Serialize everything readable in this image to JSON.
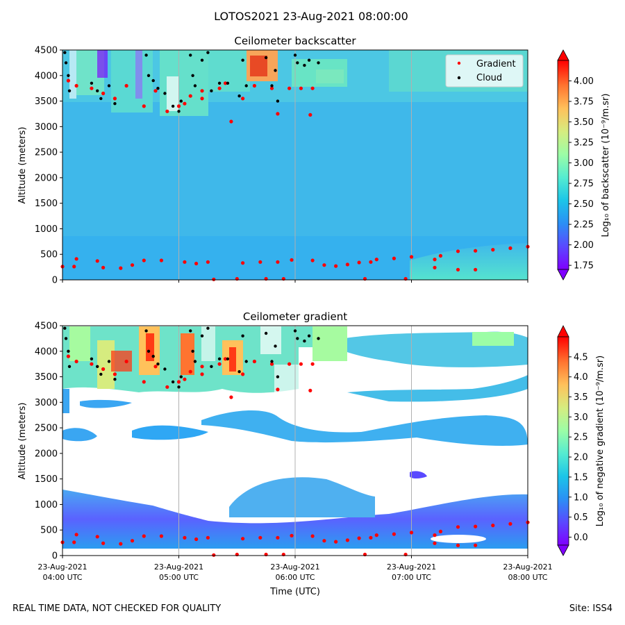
{
  "figure": {
    "suptitle": "LOTOS2021 23-Aug-2021 08:00:00",
    "footer_left": "REAL TIME DATA, NOT CHECKED FOR QUALITY",
    "footer_right": "Site: ISS4"
  },
  "colors": {
    "background_field": "#3fb8ea",
    "gradient_marker": "#ff0000",
    "cloud_marker": "#000000",
    "grid": "#b0b0b0",
    "colormap": [
      "#7f00ff",
      "#5a49ff",
      "#2b8ff5",
      "#1cc5e8",
      "#55ecd1",
      "#9cfda6",
      "#d6ec7f",
      "#ffc15b",
      "#ff7430",
      "#ff0000"
    ]
  },
  "chart_data": [
    {
      "type": "heatmap",
      "title": "Ceilometer backscatter",
      "xlabel": "Time (UTC)",
      "ylabel": "Altitude (meters)",
      "xlim_hours": [
        4,
        8
      ],
      "ylim": [
        0,
        4500
      ],
      "yticks": [
        0,
        500,
        1000,
        1500,
        2000,
        2500,
        3000,
        3500,
        4000,
        4500
      ],
      "xticks": [
        {
          "hour": 4,
          "line1": "23-Aug-2021",
          "line2": "04:00 UTC"
        },
        {
          "hour": 5,
          "line1": "23-Aug-2021",
          "line2": "05:00 UTC"
        },
        {
          "hour": 6,
          "line1": "23-Aug-2021",
          "line2": "06:00 UTC"
        },
        {
          "hour": 7,
          "line1": "23-Aug-2021",
          "line2": "07:00 UTC"
        },
        {
          "hour": 8,
          "line1": "23-Aug-2021",
          "line2": "08:00 UTC"
        }
      ],
      "show_xtick_labels": false,
      "colorbar": {
        "label": "Log₁₀ of backscatter (10⁻⁹/m.sr)",
        "min": 1.7,
        "max": 4.25,
        "ticks": [
          "1.75",
          "2.00",
          "2.25",
          "2.50",
          "2.75",
          "3.00",
          "3.25",
          "3.50",
          "3.75",
          "4.00"
        ]
      },
      "legend": {
        "position": "top-right",
        "entries": [
          "Gradient",
          "Cloud"
        ]
      },
      "gradient_points": [
        [
          4.0,
          260
        ],
        [
          4.1,
          260
        ],
        [
          4.12,
          410
        ],
        [
          4.3,
          370
        ],
        [
          4.35,
          240
        ],
        [
          4.5,
          230
        ],
        [
          4.6,
          290
        ],
        [
          4.7,
          380
        ],
        [
          4.85,
          380
        ],
        [
          5.05,
          350
        ],
        [
          5.15,
          320
        ],
        [
          5.25,
          350
        ],
        [
          5.3,
          10
        ],
        [
          5.5,
          20
        ],
        [
          5.55,
          330
        ],
        [
          5.7,
          350
        ],
        [
          5.75,
          20
        ],
        [
          5.9,
          20
        ],
        [
          5.85,
          350
        ],
        [
          5.97,
          390
        ],
        [
          6.15,
          380
        ],
        [
          6.25,
          290
        ],
        [
          6.35,
          270
        ],
        [
          6.45,
          300
        ],
        [
          6.55,
          340
        ],
        [
          6.65,
          350
        ],
        [
          6.7,
          400
        ],
        [
          6.85,
          420
        ],
        [
          6.6,
          20
        ],
        [
          6.95,
          20
        ],
        [
          7.0,
          450
        ],
        [
          7.2,
          400
        ],
        [
          7.2,
          240
        ],
        [
          7.4,
          200
        ],
        [
          7.55,
          200
        ],
        [
          7.25,
          470
        ],
        [
          7.4,
          560
        ],
        [
          7.55,
          570
        ],
        [
          7.7,
          590
        ],
        [
          7.85,
          620
        ],
        [
          8.0,
          650
        ],
        [
          4.05,
          3900
        ],
        [
          4.12,
          3800
        ],
        [
          4.25,
          3750
        ],
        [
          4.35,
          3650
        ],
        [
          4.45,
          3550
        ],
        [
          4.55,
          3800
        ],
        [
          4.7,
          3400
        ],
        [
          4.8,
          3700
        ],
        [
          4.9,
          3300
        ],
        [
          5.0,
          3400
        ],
        [
          5.1,
          3600
        ],
        [
          5.2,
          3700
        ],
        [
          5.35,
          3750
        ],
        [
          5.4,
          3850
        ],
        [
          5.45,
          3100
        ],
        [
          5.55,
          3550
        ],
        [
          5.65,
          3800
        ],
        [
          5.8,
          3750
        ],
        [
          5.85,
          3250
        ],
        [
          5.95,
          3750
        ],
        [
          6.05,
          3750
        ],
        [
          6.15,
          3750
        ],
        [
          6.13,
          3230
        ],
        [
          5.2,
          3550
        ],
        [
          5.05,
          3450
        ]
      ],
      "cloud_points": [
        [
          4.02,
          4450
        ],
        [
          4.03,
          4250
        ],
        [
          4.05,
          4000
        ],
        [
          4.06,
          3700
        ],
        [
          4.25,
          3850
        ],
        [
          4.3,
          3700
        ],
        [
          4.33,
          3550
        ],
        [
          4.4,
          3800
        ],
        [
          4.45,
          3450
        ],
        [
          4.72,
          4400
        ],
        [
          4.74,
          4000
        ],
        [
          4.78,
          3900
        ],
        [
          4.82,
          3750
        ],
        [
          4.88,
          3650
        ],
        [
          4.95,
          3400
        ],
        [
          5.0,
          3300
        ],
        [
          5.02,
          3500
        ],
        [
          5.1,
          4400
        ],
        [
          5.12,
          4000
        ],
        [
          5.14,
          3800
        ],
        [
          5.2,
          4300
        ],
        [
          5.25,
          4450
        ],
        [
          5.28,
          3700
        ],
        [
          5.35,
          3850
        ],
        [
          5.42,
          3850
        ],
        [
          5.52,
          3600
        ],
        [
          5.55,
          4300
        ],
        [
          5.58,
          3800
        ],
        [
          5.75,
          4350
        ],
        [
          5.8,
          3800
        ],
        [
          5.83,
          4100
        ],
        [
          5.85,
          3500
        ],
        [
          6.0,
          4400
        ],
        [
          6.02,
          4250
        ],
        [
          6.08,
          4200
        ],
        [
          6.12,
          4300
        ],
        [
          6.2,
          4250
        ]
      ]
    },
    {
      "type": "heatmap",
      "title": "Ceilometer gradient",
      "xlabel": "Time (UTC)",
      "ylabel": "Altitude (meters)",
      "xlim_hours": [
        4,
        8
      ],
      "ylim": [
        0,
        4500
      ],
      "yticks": [
        0,
        500,
        1000,
        1500,
        2000,
        2500,
        3000,
        3500,
        4000,
        4500
      ],
      "xticks": [
        {
          "hour": 4,
          "line1": "23-Aug-2021",
          "line2": "04:00 UTC"
        },
        {
          "hour": 5,
          "line1": "23-Aug-2021",
          "line2": "05:00 UTC"
        },
        {
          "hour": 6,
          "line1": "23-Aug-2021",
          "line2": "06:00 UTC"
        },
        {
          "hour": 7,
          "line1": "23-Aug-2021",
          "line2": "07:00 UTC"
        },
        {
          "hour": 8,
          "line1": "23-Aug-2021",
          "line2": "08:00 UTC"
        }
      ],
      "show_xtick_labels": true,
      "colorbar": {
        "label": "Log₁₀ of negative gradient (10⁻⁹/m.sr)",
        "min": -0.2,
        "max": 5.0,
        "ticks": [
          "0.0",
          "0.5",
          "1.0",
          "1.5",
          "2.0",
          "2.5",
          "3.0",
          "3.5",
          "4.0",
          "4.5"
        ]
      },
      "gradient_points": [
        [
          4.0,
          260
        ],
        [
          4.1,
          260
        ],
        [
          4.12,
          410
        ],
        [
          4.3,
          370
        ],
        [
          4.35,
          240
        ],
        [
          4.5,
          230
        ],
        [
          4.6,
          290
        ],
        [
          4.7,
          380
        ],
        [
          4.85,
          380
        ],
        [
          5.05,
          350
        ],
        [
          5.15,
          320
        ],
        [
          5.25,
          350
        ],
        [
          5.3,
          10
        ],
        [
          5.5,
          20
        ],
        [
          5.55,
          330
        ],
        [
          5.7,
          350
        ],
        [
          5.75,
          20
        ],
        [
          5.9,
          20
        ],
        [
          5.85,
          350
        ],
        [
          5.97,
          390
        ],
        [
          6.15,
          380
        ],
        [
          6.25,
          290
        ],
        [
          6.35,
          270
        ],
        [
          6.45,
          300
        ],
        [
          6.55,
          340
        ],
        [
          6.65,
          350
        ],
        [
          6.7,
          400
        ],
        [
          6.85,
          420
        ],
        [
          6.6,
          20
        ],
        [
          6.95,
          20
        ],
        [
          7.0,
          450
        ],
        [
          7.2,
          400
        ],
        [
          7.2,
          240
        ],
        [
          7.4,
          200
        ],
        [
          7.55,
          200
        ],
        [
          7.25,
          470
        ],
        [
          7.4,
          560
        ],
        [
          7.55,
          570
        ],
        [
          7.7,
          590
        ],
        [
          7.85,
          620
        ],
        [
          8.0,
          650
        ],
        [
          4.05,
          3900
        ],
        [
          4.12,
          3800
        ],
        [
          4.25,
          3750
        ],
        [
          4.35,
          3650
        ],
        [
          4.45,
          3550
        ],
        [
          4.55,
          3800
        ],
        [
          4.7,
          3400
        ],
        [
          4.8,
          3700
        ],
        [
          4.9,
          3300
        ],
        [
          5.0,
          3400
        ],
        [
          5.1,
          3600
        ],
        [
          5.2,
          3700
        ],
        [
          5.35,
          3750
        ],
        [
          5.4,
          3850
        ],
        [
          5.45,
          3100
        ],
        [
          5.55,
          3550
        ],
        [
          5.65,
          3800
        ],
        [
          5.8,
          3750
        ],
        [
          5.85,
          3250
        ],
        [
          5.95,
          3750
        ],
        [
          6.05,
          3750
        ],
        [
          6.15,
          3750
        ],
        [
          6.13,
          3230
        ],
        [
          5.2,
          3550
        ],
        [
          5.05,
          3450
        ]
      ],
      "cloud_points": [
        [
          4.02,
          4450
        ],
        [
          4.03,
          4250
        ],
        [
          4.05,
          4000
        ],
        [
          4.06,
          3700
        ],
        [
          4.25,
          3850
        ],
        [
          4.3,
          3700
        ],
        [
          4.33,
          3550
        ],
        [
          4.4,
          3800
        ],
        [
          4.45,
          3450
        ],
        [
          4.72,
          4400
        ],
        [
          4.74,
          4000
        ],
        [
          4.78,
          3900
        ],
        [
          4.82,
          3750
        ],
        [
          4.88,
          3650
        ],
        [
          4.95,
          3400
        ],
        [
          5.0,
          3300
        ],
        [
          5.02,
          3500
        ],
        [
          5.1,
          4400
        ],
        [
          5.12,
          4000
        ],
        [
          5.14,
          3800
        ],
        [
          5.2,
          4300
        ],
        [
          5.25,
          4450
        ],
        [
          5.28,
          3700
        ],
        [
          5.35,
          3850
        ],
        [
          5.42,
          3850
        ],
        [
          5.52,
          3600
        ],
        [
          5.55,
          4300
        ],
        [
          5.58,
          3800
        ],
        [
          5.75,
          4350
        ],
        [
          5.8,
          3800
        ],
        [
          5.83,
          4100
        ],
        [
          5.85,
          3500
        ],
        [
          6.0,
          4400
        ],
        [
          6.02,
          4250
        ],
        [
          6.08,
          4200
        ],
        [
          6.12,
          4300
        ],
        [
          6.2,
          4250
        ]
      ]
    }
  ]
}
